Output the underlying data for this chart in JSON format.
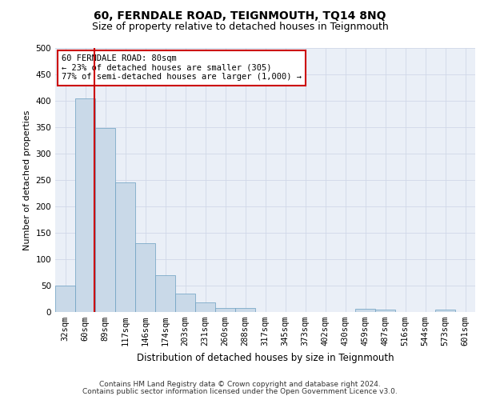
{
  "title": "60, FERNDALE ROAD, TEIGNMOUTH, TQ14 8NQ",
  "subtitle": "Size of property relative to detached houses in Teignmouth",
  "xlabel": "Distribution of detached houses by size in Teignmouth",
  "ylabel": "Number of detached properties",
  "categories": [
    "32sqm",
    "60sqm",
    "89sqm",
    "117sqm",
    "146sqm",
    "174sqm",
    "203sqm",
    "231sqm",
    "260sqm",
    "288sqm",
    "317sqm",
    "345sqm",
    "373sqm",
    "402sqm",
    "430sqm",
    "459sqm",
    "487sqm",
    "516sqm",
    "544sqm",
    "573sqm",
    "601sqm"
  ],
  "values": [
    50,
    405,
    348,
    246,
    130,
    70,
    35,
    18,
    8,
    8,
    0,
    0,
    0,
    0,
    0,
    6,
    5,
    0,
    0,
    4,
    0
  ],
  "bar_color": "#c9d9e8",
  "bar_edge_color": "#6a9fc0",
  "vline_x": 1.45,
  "vline_color": "#cc0000",
  "annotation_box_text": "60 FERNDALE ROAD: 80sqm\n← 23% of detached houses are smaller (305)\n77% of semi-detached houses are larger (1,000) →",
  "annotation_box_facecolor": "white",
  "annotation_box_edgecolor": "#cc0000",
  "ylim": [
    0,
    500
  ],
  "yticks": [
    0,
    50,
    100,
    150,
    200,
    250,
    300,
    350,
    400,
    450,
    500
  ],
  "grid_color": "#d0d8e8",
  "background_color": "#eaeff7",
  "footer_line1": "Contains HM Land Registry data © Crown copyright and database right 2024.",
  "footer_line2": "Contains public sector information licensed under the Open Government Licence v3.0.",
  "title_fontsize": 10,
  "subtitle_fontsize": 9,
  "xlabel_fontsize": 8.5,
  "ylabel_fontsize": 8,
  "tick_fontsize": 7.5,
  "annotation_fontsize": 7.5,
  "footer_fontsize": 6.5
}
